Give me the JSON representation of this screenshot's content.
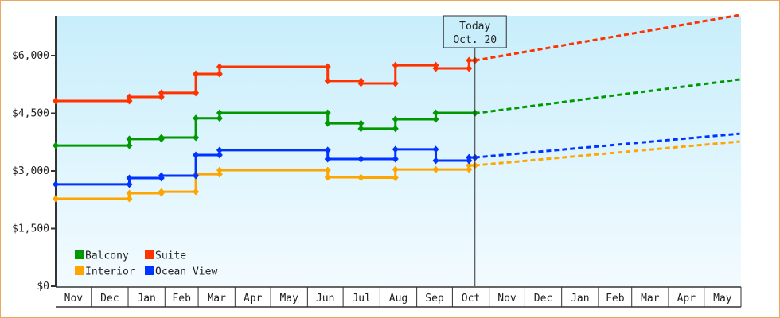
{
  "chart_data": {
    "type": "line",
    "step": true,
    "title": "",
    "xlabel": "",
    "ylabel": "",
    "x_tick_labels": [
      "Nov",
      "Dec",
      "Jan",
      "Feb",
      "Mar",
      "Apr",
      "May",
      "Jun",
      "Jul",
      "Aug",
      "Sep",
      "Oct",
      "Nov",
      "Dec",
      "Jan",
      "Feb",
      "Mar",
      "Apr",
      "May"
    ],
    "x_range": [
      "Nov 1",
      "May 31"
    ],
    "y_ticks": [
      0,
      1500,
      3000,
      4500,
      6000
    ],
    "y_tick_labels": [
      "$0",
      "$1,500",
      "$3,000",
      "$4,500",
      "$6,000"
    ],
    "ylim": [
      0,
      7000
    ],
    "grid": false,
    "legend_placement": "bottom-left",
    "today_marker": {
      "line1": "Today",
      "line2": "Oct. 20",
      "date": "Oct 20"
    },
    "series": [
      {
        "name": "Balcony",
        "color": "#009900",
        "values": [
          [
            "Nov 1",
            3660
          ],
          [
            "Jan 2",
            3830
          ],
          [
            "Jan 29",
            3870
          ],
          [
            "Feb 27",
            4370
          ],
          [
            "Mar 19",
            4510
          ],
          [
            "Jun 18",
            4240
          ],
          [
            "Jul 16",
            4100
          ],
          [
            "Aug 14",
            4345
          ],
          [
            "Sep 17",
            4510
          ],
          [
            "Oct 20",
            4500
          ]
        ],
        "projection": [
          [
            "Oct 20",
            4500
          ],
          [
            "May 31",
            5380
          ]
        ]
      },
      {
        "name": "Suite",
        "color": "#ff3300",
        "values": [
          [
            "Nov 1",
            4820
          ],
          [
            "Jan 2",
            4925
          ],
          [
            "Jan 29",
            5030
          ],
          [
            "Feb 27",
            5525
          ],
          [
            "Mar 19",
            5710
          ],
          [
            "Jun 18",
            5340
          ],
          [
            "Jul 16",
            5275
          ],
          [
            "Aug 14",
            5750
          ],
          [
            "Sep 17",
            5670
          ],
          [
            "Oct 15",
            5875
          ],
          [
            "Oct 20",
            5875
          ]
        ],
        "projection": [
          [
            "Oct 20",
            5875
          ],
          [
            "May 31",
            7055
          ]
        ]
      },
      {
        "name": "Interior",
        "color": "#ffa500",
        "values": [
          [
            "Nov 1",
            2275
          ],
          [
            "Jan 2",
            2420
          ],
          [
            "Jan 29",
            2460
          ],
          [
            "Feb 27",
            2915
          ],
          [
            "Mar 19",
            3020
          ],
          [
            "Jun 18",
            2835
          ],
          [
            "Jul 16",
            2825
          ],
          [
            "Aug 14",
            3040
          ],
          [
            "Sep 17",
            3040
          ],
          [
            "Oct 15",
            3145
          ],
          [
            "Oct 20",
            3145
          ]
        ],
        "projection": [
          [
            "Oct 20",
            3145
          ],
          [
            "May 31",
            3765
          ]
        ]
      },
      {
        "name": "Ocean View",
        "color": "#0033ff",
        "values": [
          [
            "Nov 1",
            2650
          ],
          [
            "Jan 2",
            2815
          ],
          [
            "Jan 29",
            2875
          ],
          [
            "Feb 27",
            3415
          ],
          [
            "Mar 19",
            3540
          ],
          [
            "Jun 18",
            3310
          ],
          [
            "Jul 16",
            3310
          ],
          [
            "Aug 14",
            3560
          ],
          [
            "Sep 17",
            3270
          ],
          [
            "Oct 15",
            3350
          ],
          [
            "Oct 20",
            3350
          ]
        ],
        "projection": [
          [
            "Oct 20",
            3350
          ],
          [
            "May 31",
            3970
          ]
        ]
      }
    ]
  }
}
